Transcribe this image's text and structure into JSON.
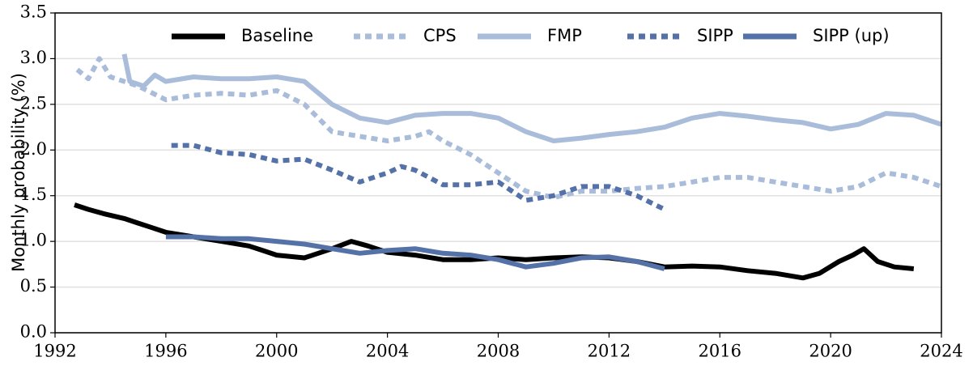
{
  "chart_data": {
    "type": "line",
    "ylabel": "Monthly probability (%)",
    "xlim": [
      1992,
      2024
    ],
    "xticks": [
      1992,
      1996,
      2000,
      2004,
      2008,
      2012,
      2016,
      2020,
      2024
    ],
    "ylim": [
      0,
      3.5
    ],
    "yticks": [
      {
        "value": 0,
        "label": "0.0"
      },
      {
        "value": 0.5,
        "label": "0.5"
      },
      {
        "value": 1,
        "label": "1.0"
      },
      {
        "value": 1.5,
        "label": "1.5"
      },
      {
        "value": 2,
        "label": "2.0"
      },
      {
        "value": 2.5,
        "label": "2.5"
      },
      {
        "value": 3,
        "label": "3.0"
      },
      {
        "value": 3.5,
        "label": "3.5"
      }
    ],
    "grid": "y",
    "legend": "top",
    "series": [
      {
        "name": "Baseline",
        "color": "#000000",
        "style": "solid",
        "x": [
          1992.7,
          1993.2,
          1993.8,
          1994.5,
          1995,
          1995.5,
          1996,
          1997,
          1998,
          1999,
          1999.5,
          2000,
          2001,
          2002,
          2002.7,
          2003.3,
          2004,
          2005,
          2006,
          2007,
          2008,
          2009,
          2010,
          2011,
          2012,
          2013,
          2014,
          2015,
          2016,
          2017,
          2018,
          2019,
          2019.6,
          2020.3,
          2020.8,
          2021.2,
          2021.7,
          2022.3,
          2023
        ],
        "values": [
          1.4,
          1.35,
          1.3,
          1.25,
          1.2,
          1.15,
          1.1,
          1.05,
          1.0,
          0.95,
          0.9,
          0.85,
          0.82,
          0.92,
          1.0,
          0.95,
          0.88,
          0.85,
          0.8,
          0.8,
          0.82,
          0.8,
          0.82,
          0.83,
          0.82,
          0.78,
          0.72,
          0.73,
          0.72,
          0.68,
          0.65,
          0.6,
          0.65,
          0.78,
          0.85,
          0.92,
          0.78,
          0.72,
          0.7
        ]
      },
      {
        "name": "CPS",
        "color": "#a9bcd9",
        "style": "dashed",
        "x": [
          1992.8,
          1993.2,
          1993.6,
          1994,
          1995,
          1996,
          1997,
          1998,
          1999,
          2000,
          2001,
          2002,
          2003,
          2004,
          2005,
          2005.5,
          2006,
          2007,
          2008,
          2009,
          2010,
          2011,
          2012,
          2013,
          2014,
          2015,
          2016,
          2017,
          2018,
          2019,
          2020,
          2021,
          2022,
          2023,
          2024
        ],
        "values": [
          2.88,
          2.78,
          3.0,
          2.8,
          2.7,
          2.55,
          2.6,
          2.62,
          2.6,
          2.65,
          2.5,
          2.2,
          2.15,
          2.1,
          2.15,
          2.2,
          2.1,
          1.95,
          1.75,
          1.55,
          1.48,
          1.55,
          1.55,
          1.58,
          1.6,
          1.65,
          1.7,
          1.7,
          1.65,
          1.6,
          1.55,
          1.6,
          1.75,
          1.7,
          1.6
        ]
      },
      {
        "name": "FMP",
        "color": "#a9bcd9",
        "style": "solid",
        "x": [
          1994.5,
          1994.7,
          1995.2,
          1995.6,
          1996,
          1997,
          1998,
          1999,
          2000,
          2001,
          2002,
          2003,
          2004,
          2005,
          2006,
          2007,
          2008,
          2009,
          2010,
          2011,
          2012,
          2013,
          2014,
          2015,
          2016,
          2017,
          2018,
          2019,
          2020,
          2021,
          2022,
          2023,
          2024
        ],
        "values": [
          3.05,
          2.75,
          2.7,
          2.82,
          2.75,
          2.8,
          2.78,
          2.78,
          2.8,
          2.75,
          2.5,
          2.35,
          2.3,
          2.38,
          2.4,
          2.4,
          2.35,
          2.2,
          2.1,
          2.13,
          2.17,
          2.2,
          2.25,
          2.35,
          2.4,
          2.37,
          2.33,
          2.3,
          2.23,
          2.28,
          2.4,
          2.38,
          2.28
        ]
      },
      {
        "name": "SIPP",
        "color": "#5472a8",
        "style": "dashed",
        "x": [
          1996.2,
          1997,
          1998,
          1999,
          2000,
          2001,
          2002,
          2003,
          2004,
          2004.5,
          2005,
          2006,
          2007,
          2008,
          2009,
          2010,
          2011,
          2012,
          2013,
          2014
        ],
        "values": [
          2.05,
          2.05,
          1.97,
          1.95,
          1.88,
          1.9,
          1.78,
          1.65,
          1.75,
          1.82,
          1.78,
          1.62,
          1.62,
          1.65,
          1.45,
          1.5,
          1.6,
          1.6,
          1.5,
          1.35
        ]
      },
      {
        "name": "SIPP (up)",
        "color": "#5472a8",
        "style": "solid",
        "x": [
          1996,
          1997,
          1998,
          1999,
          2000,
          2001,
          2002,
          2003,
          2004,
          2005,
          2006,
          2007,
          2008,
          2009,
          2010,
          2011,
          2012,
          2013,
          2014
        ],
        "values": [
          1.05,
          1.05,
          1.03,
          1.03,
          1.0,
          0.97,
          0.92,
          0.87,
          0.9,
          0.92,
          0.87,
          0.85,
          0.8,
          0.72,
          0.76,
          0.82,
          0.83,
          0.78,
          0.7
        ]
      }
    ]
  }
}
